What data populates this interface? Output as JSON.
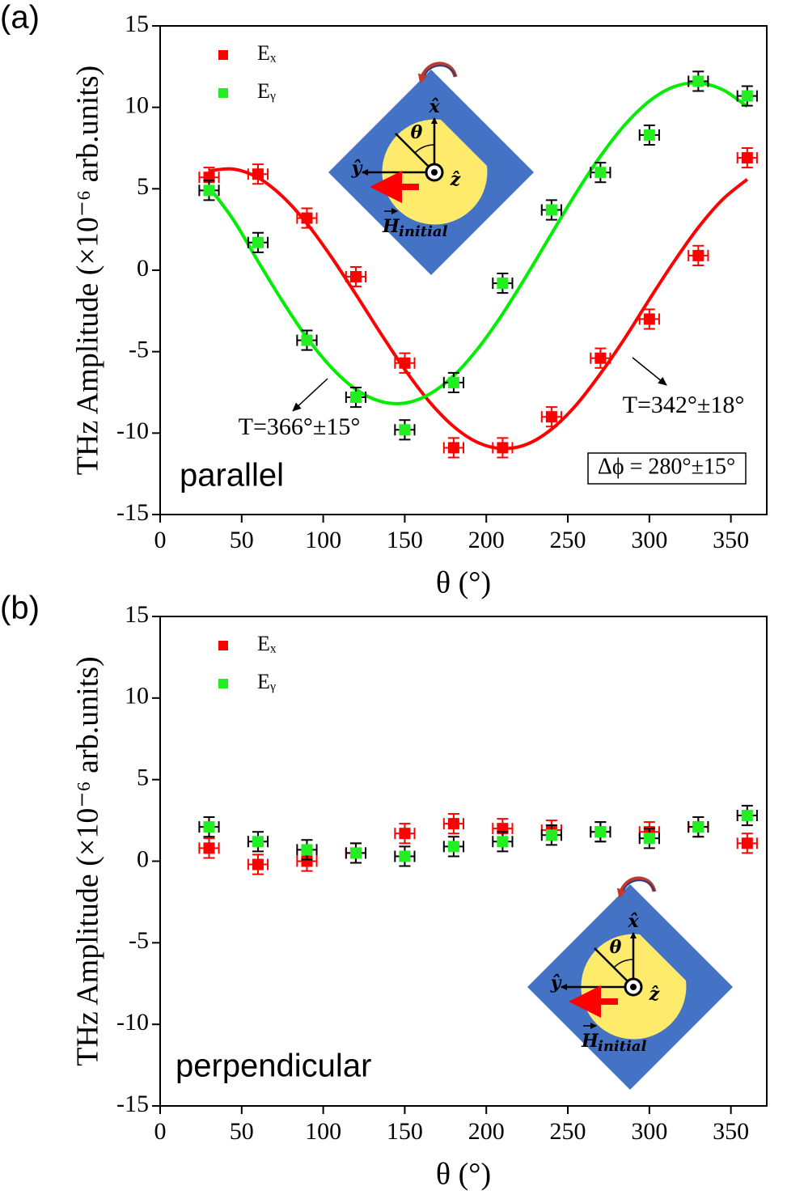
{
  "chart_data": [
    {
      "type": "scatter",
      "panel_label": "(a)",
      "mode_label": "parallel",
      "xlabel": "θ (°)",
      "ylabel": "THz Amplitude (×10⁻⁶ arb.units)",
      "xlim": [
        0,
        372
      ],
      "ylim": [
        -15,
        15
      ],
      "xticks": [
        0,
        50,
        100,
        150,
        200,
        250,
        300,
        350
      ],
      "yticks": [
        -15,
        -10,
        -5,
        0,
        5,
        10,
        15
      ],
      "legend": "upper left",
      "series": [
        {
          "name": "Eₓ",
          "color": "#ff0000",
          "error_color": "#ff0000",
          "y_error": 0.6,
          "x_error": 6,
          "x": [
            30,
            60,
            90,
            120,
            150,
            180,
            210,
            240,
            270,
            300,
            330,
            360
          ],
          "values": [
            5.7,
            5.9,
            3.2,
            -0.4,
            -5.7,
            -10.9,
            -10.9,
            -9.0,
            -5.4,
            -3.0,
            0.9,
            6.9
          ]
        },
        {
          "name": "Eᵧ",
          "color": "#22ee22",
          "error_color": "#000000",
          "y_error": 0.6,
          "x_error": 6,
          "x": [
            30,
            60,
            90,
            120,
            150,
            180,
            210,
            240,
            270,
            300,
            330,
            360
          ],
          "values": [
            4.9,
            1.7,
            -4.3,
            -7.8,
            -9.8,
            -6.9,
            -0.8,
            3.7,
            6.0,
            8.3,
            11.6,
            10.7
          ]
        }
      ],
      "fits": [
        {
          "color": "#ff0000",
          "x": [
            30,
            45,
            60,
            75,
            90,
            105,
            120,
            135,
            150,
            165,
            180,
            195,
            210,
            225,
            240,
            255,
            270,
            285,
            300,
            315,
            330,
            345,
            360
          ],
          "values": [
            6.1,
            6.21,
            5.68,
            4.53,
            2.87,
            0.81,
            -1.48,
            -3.84,
            -6.09,
            -8.06,
            -9.6,
            -10.59,
            -10.95,
            -10.68,
            -9.76,
            -8.29,
            -6.35,
            -4.17,
            -1.79,
            0.51,
            2.62,
            4.35,
            5.58
          ]
        },
        {
          "color": "#00ee00",
          "x": [
            30,
            45,
            60,
            75,
            90,
            105,
            120,
            135,
            150,
            165,
            180,
            195,
            210,
            225,
            240,
            255,
            270,
            285,
            300,
            315,
            330,
            345,
            360
          ],
          "values": [
            5.1,
            3.08,
            0.55,
            -1.9,
            -4.14,
            -5.97,
            -7.31,
            -8.05,
            -8.16,
            -7.62,
            -6.48,
            -4.79,
            -2.68,
            -0.28,
            2.24,
            4.73,
            7.0,
            8.93,
            10.38,
            11.26,
            11.49,
            11.08,
            10.05
          ]
        }
      ],
      "annotations": [
        {
          "text": "T=366°±15°",
          "color": "#00dd00",
          "boxed": false
        },
        {
          "text": "T=342°±18°",
          "color": "#ff0000",
          "boxed": false
        },
        {
          "text": "Δϕ = 280°±15°",
          "color": "#000000",
          "boxed": true
        }
      ],
      "inset": {
        "x_label": "x̂",
        "y_label": "ŷ",
        "z_label": "ẑ",
        "angle_label": "θ",
        "field_label": "H",
        "field_subscript": "initial"
      }
    },
    {
      "type": "scatter",
      "panel_label": "(b)",
      "mode_label": "perpendicular",
      "xlabel": "θ (°)",
      "ylabel": "THz Amplitude (×10⁻⁶ arb.units)",
      "xlim": [
        0,
        372
      ],
      "ylim": [
        -15,
        15
      ],
      "xticks": [
        0,
        50,
        100,
        150,
        200,
        250,
        300,
        350
      ],
      "yticks": [
        -15,
        -10,
        -5,
        0,
        5,
        10,
        15
      ],
      "legend": "upper left",
      "series": [
        {
          "name": "Eₓ",
          "color": "#ff0000",
          "error_color": "#ff0000",
          "y_error": 0.6,
          "x_error": 6,
          "x": [
            30,
            60,
            90,
            120,
            150,
            180,
            210,
            240,
            270,
            300,
            330,
            360
          ],
          "values": [
            0.8,
            -0.2,
            0.0,
            0.5,
            1.7,
            2.3,
            2.0,
            1.9,
            1.8,
            1.8,
            2.1,
            1.1
          ]
        },
        {
          "name": "Eᵧ",
          "color": "#22ee22",
          "error_color": "#000000",
          "y_error": 0.6,
          "x_error": 6,
          "x": [
            30,
            60,
            90,
            120,
            150,
            180,
            210,
            240,
            270,
            300,
            330,
            360
          ],
          "values": [
            2.1,
            1.2,
            0.7,
            0.5,
            0.3,
            0.9,
            1.2,
            1.6,
            1.8,
            1.4,
            2.1,
            2.8
          ]
        }
      ],
      "fits": [],
      "annotations": [],
      "inset": {
        "x_label": "x̂",
        "y_label": "ŷ",
        "z_label": "ẑ",
        "angle_label": "θ",
        "field_label": "H",
        "field_subscript": "initial"
      }
    }
  ]
}
